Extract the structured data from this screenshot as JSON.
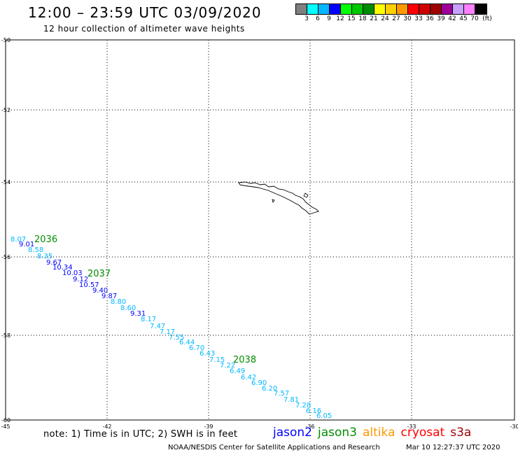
{
  "header": {
    "title": "12:00 – 23:59 UTC 03/09/2020",
    "subtitle": "12 hour collection of altimeter wave heights"
  },
  "colorbar": {
    "colors": [
      "#7f7f7f",
      "#00ffff",
      "#00b8ff",
      "#0000ff",
      "#00ff00",
      "#00c800",
      "#008c00",
      "#ffff00",
      "#ffd000",
      "#ff9900",
      "#ff0000",
      "#d00000",
      "#a00000",
      "#9c0099",
      "#c8a0ff",
      "#ff80ff",
      "#000000"
    ],
    "labels": [
      "3",
      "6",
      "9",
      "12",
      "15",
      "18",
      "21",
      "24",
      "27",
      "30",
      "33",
      "36",
      "39",
      "42",
      "45",
      "70",
      "(ft)"
    ]
  },
  "axes": {
    "lat_labels": [
      "-50",
      "-52",
      "-54",
      "-56",
      "-58",
      "-60"
    ],
    "lon_labels": [
      "-45",
      "-42",
      "-39",
      "-36",
      "-33",
      "-30"
    ]
  },
  "track_times": [
    {
      "text": "2036",
      "color": "#008c00"
    },
    {
      "text": "2037",
      "color": "#008c00"
    },
    {
      "text": "2038",
      "color": "#008c00"
    }
  ],
  "wave_heights": [
    {
      "text": "8.07",
      "color": "#00b8ff"
    },
    {
      "text": "9.01",
      "color": "#0000ff"
    },
    {
      "text": "8.58",
      "color": "#00b8ff"
    },
    {
      "text": "8.35",
      "color": "#00b8ff"
    },
    {
      "text": "9.67",
      "color": "#0000ff"
    },
    {
      "text": "10.34",
      "color": "#0000ff"
    },
    {
      "text": "10.03",
      "color": "#0000ff"
    },
    {
      "text": "9.12",
      "color": "#0000ff"
    },
    {
      "text": "10.57",
      "color": "#0000ff"
    },
    {
      "text": "9.40",
      "color": "#0000ff"
    },
    {
      "text": "9.87",
      "color": "#0000ff"
    },
    {
      "text": "8.80",
      "color": "#00b8ff"
    },
    {
      "text": "8.60",
      "color": "#00b8ff"
    },
    {
      "text": "9.31",
      "color": "#0000ff"
    },
    {
      "text": "8.17",
      "color": "#00b8ff"
    },
    {
      "text": "7.47",
      "color": "#00b8ff"
    },
    {
      "text": "7.17",
      "color": "#00b8ff"
    },
    {
      "text": "7.55",
      "color": "#00b8ff"
    },
    {
      "text": "6.44",
      "color": "#00b8ff"
    },
    {
      "text": "6.70",
      "color": "#00b8ff"
    },
    {
      "text": "6.43",
      "color": "#00b8ff"
    },
    {
      "text": "7.15",
      "color": "#00b8ff"
    },
    {
      "text": "7.22",
      "color": "#00b8ff"
    },
    {
      "text": "6.49",
      "color": "#00b8ff"
    },
    {
      "text": "6.42",
      "color": "#00b8ff"
    },
    {
      "text": "6.90",
      "color": "#00b8ff"
    },
    {
      "text": "6.20",
      "color": "#00b8ff"
    },
    {
      "text": "7.57",
      "color": "#00b8ff"
    },
    {
      "text": "7.81",
      "color": "#00b8ff"
    },
    {
      "text": "7.28",
      "color": "#00b8ff"
    },
    {
      "text": "6.16",
      "color": "#00b8ff"
    },
    {
      "text": "6.05",
      "color": "#00b8ff"
    }
  ],
  "note": "note: 1) Time is in UTC; 2) SWH is in feet",
  "satellites": [
    {
      "name": "jason2",
      "color": "#0000ff"
    },
    {
      "name": "jason3",
      "color": "#008c00"
    },
    {
      "name": "altika",
      "color": "#ff9900"
    },
    {
      "name": "cryosat",
      "color": "#ff0000"
    },
    {
      "name": "s3a",
      "color": "#a00000"
    }
  ],
  "footer": {
    "credit": "NOAA/NESDIS Center for Satellite Applications and Research",
    "timestamp": "Mar 10 12:27:37 UTC 2020"
  }
}
